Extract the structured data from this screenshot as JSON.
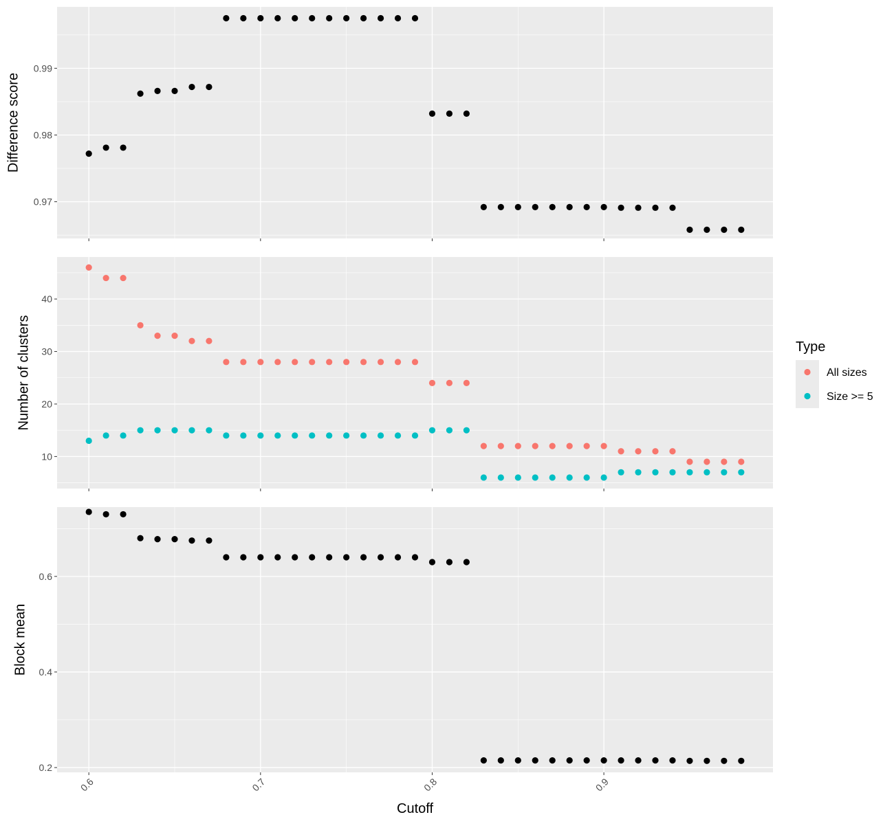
{
  "chart_data": {
    "type": "scatter",
    "xlabel": "Cutoff",
    "x_ticks": [
      "0.6",
      "0.7",
      "0.8",
      "0.9"
    ],
    "x_tick_values": [
      0.6,
      0.7,
      0.8,
      0.9
    ],
    "xlim": [
      0.5815,
      0.9985
    ],
    "grid": true,
    "legend": {
      "title": "Type",
      "position": "right",
      "entries": [
        {
          "label": "All sizes",
          "color": "#F8766D"
        },
        {
          "label": "Size >= 5",
          "color": "#00BFC4"
        }
      ]
    },
    "panels": [
      {
        "ylabel": "Difference score",
        "ylim": [
          0.9645,
          0.9992
        ],
        "y_ticks": [
          "0.97",
          "0.98",
          "0.99"
        ],
        "y_tick_values": [
          0.97,
          0.98,
          0.99
        ],
        "y_minor": [
          0.965,
          0.975,
          0.985,
          0.995
        ],
        "series": [
          {
            "color": "#000000",
            "x": [
              0.6,
              0.61,
              0.62,
              0.63,
              0.64,
              0.65,
              0.66,
              0.67,
              0.68,
              0.69,
              0.7,
              0.71,
              0.72,
              0.73,
              0.74,
              0.75,
              0.76,
              0.77,
              0.78,
              0.79,
              0.8,
              0.81,
              0.82,
              0.83,
              0.84,
              0.85,
              0.86,
              0.87,
              0.88,
              0.89,
              0.9,
              0.91,
              0.92,
              0.93,
              0.94,
              0.95,
              0.96,
              0.97,
              0.98
            ],
            "y": [
              0.9772,
              0.9781,
              0.9781,
              0.9862,
              0.9866,
              0.9866,
              0.9872,
              0.9872,
              0.9975,
              0.9975,
              0.9975,
              0.9975,
              0.9975,
              0.9975,
              0.9975,
              0.9975,
              0.9975,
              0.9975,
              0.9975,
              0.9975,
              0.9832,
              0.9832,
              0.9832,
              0.9692,
              0.9692,
              0.9692,
              0.9692,
              0.9692,
              0.9692,
              0.9692,
              0.9692,
              0.9691,
              0.9691,
              0.9691,
              0.9691,
              0.9658,
              0.9658,
              0.9658,
              0.9658
            ]
          }
        ]
      },
      {
        "ylabel": "Number of clusters",
        "ylim": [
          3.9,
          48.0
        ],
        "y_ticks": [
          "10",
          "20",
          "30",
          "40"
        ],
        "y_tick_values": [
          10,
          20,
          30,
          40
        ],
        "y_minor": [
          5,
          15,
          25,
          35,
          45
        ],
        "series": [
          {
            "name": "All sizes",
            "color": "#F8766D",
            "x": [
              0.6,
              0.61,
              0.62,
              0.63,
              0.64,
              0.65,
              0.66,
              0.67,
              0.68,
              0.69,
              0.7,
              0.71,
              0.72,
              0.73,
              0.74,
              0.75,
              0.76,
              0.77,
              0.78,
              0.79,
              0.8,
              0.81,
              0.82,
              0.83,
              0.84,
              0.85,
              0.86,
              0.87,
              0.88,
              0.89,
              0.9,
              0.91,
              0.92,
              0.93,
              0.94,
              0.95,
              0.96,
              0.97,
              0.98
            ],
            "y": [
              46,
              44,
              44,
              35,
              33,
              33,
              32,
              32,
              28,
              28,
              28,
              28,
              28,
              28,
              28,
              28,
              28,
              28,
              28,
              28,
              24,
              24,
              24,
              12,
              12,
              12,
              12,
              12,
              12,
              12,
              12,
              11,
              11,
              11,
              11,
              9,
              9,
              9,
              9
            ]
          },
          {
            "name": "Size >= 5",
            "color": "#00BFC4",
            "x": [
              0.6,
              0.61,
              0.62,
              0.63,
              0.64,
              0.65,
              0.66,
              0.67,
              0.68,
              0.69,
              0.7,
              0.71,
              0.72,
              0.73,
              0.74,
              0.75,
              0.76,
              0.77,
              0.78,
              0.79,
              0.8,
              0.81,
              0.82,
              0.83,
              0.84,
              0.85,
              0.86,
              0.87,
              0.88,
              0.89,
              0.9,
              0.91,
              0.92,
              0.93,
              0.94,
              0.95,
              0.96,
              0.97,
              0.98
            ],
            "y": [
              13,
              14,
              14,
              15,
              15,
              15,
              15,
              15,
              14,
              14,
              14,
              14,
              14,
              14,
              14,
              14,
              14,
              14,
              14,
              14,
              15,
              15,
              15,
              6,
              6,
              6,
              6,
              6,
              6,
              6,
              6,
              7,
              7,
              7,
              7,
              7,
              7,
              7,
              7
            ]
          }
        ]
      },
      {
        "ylabel": "Block mean",
        "ylim": [
          0.19,
          0.745
        ],
        "y_ticks": [
          "0.2",
          "0.4",
          "0.6"
        ],
        "y_tick_values": [
          0.2,
          0.4,
          0.6
        ],
        "y_minor": [
          0.3,
          0.5,
          0.7
        ],
        "series": [
          {
            "color": "#000000",
            "x": [
              0.6,
              0.61,
              0.62,
              0.63,
              0.64,
              0.65,
              0.66,
              0.67,
              0.68,
              0.69,
              0.7,
              0.71,
              0.72,
              0.73,
              0.74,
              0.75,
              0.76,
              0.77,
              0.78,
              0.79,
              0.8,
              0.81,
              0.82,
              0.83,
              0.84,
              0.85,
              0.86,
              0.87,
              0.88,
              0.89,
              0.9,
              0.91,
              0.92,
              0.93,
              0.94,
              0.95,
              0.96,
              0.97,
              0.98
            ],
            "y": [
              0.735,
              0.73,
              0.73,
              0.68,
              0.678,
              0.678,
              0.675,
              0.675,
              0.64,
              0.64,
              0.64,
              0.64,
              0.64,
              0.64,
              0.64,
              0.64,
              0.64,
              0.64,
              0.64,
              0.64,
              0.63,
              0.63,
              0.63,
              0.215,
              0.215,
              0.215,
              0.215,
              0.215,
              0.215,
              0.215,
              0.215,
              0.215,
              0.215,
              0.215,
              0.215,
              0.214,
              0.214,
              0.214,
              0.214
            ]
          }
        ]
      }
    ]
  }
}
